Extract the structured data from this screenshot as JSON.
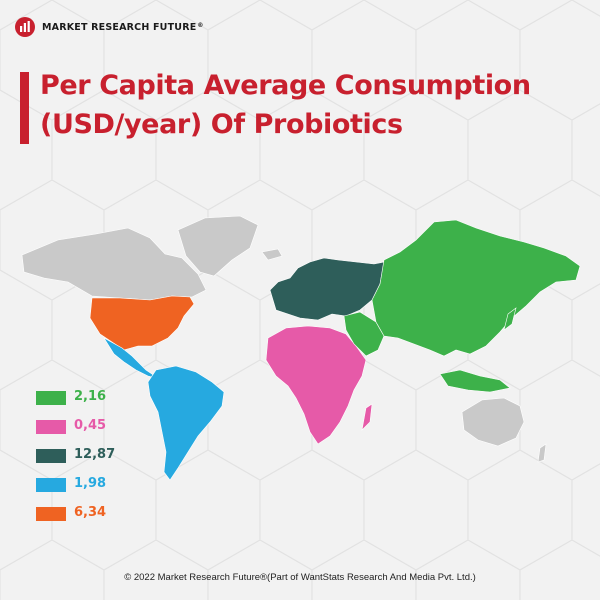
{
  "brand": {
    "name": "MARKET RESEARCH FUTURE",
    "mark": "®"
  },
  "title": {
    "line1": "Per Capita Average Consumption",
    "line2": "(USD/year) Of Probiotics"
  },
  "colors": {
    "title": "#c8202e",
    "asia_pacific": "#3db14a",
    "middle_east_africa": "#e65aa8",
    "europe": "#2e5e5a",
    "south_america": "#26a9e0",
    "north_america": "#ef6322",
    "not_covered": "#c9c9c9"
  },
  "chart_data": {
    "type": "choropleth-map",
    "legend": [
      {
        "value": "2,16",
        "color": "#3db14a"
      },
      {
        "value": "0,45",
        "color": "#e65aa8"
      },
      {
        "value": "12,87",
        "color": "#2e5e5a"
      },
      {
        "value": "1,98",
        "color": "#26a9e0"
      },
      {
        "value": "6,34",
        "color": "#ef6322"
      }
    ]
  },
  "footer": {
    "text": "© 2022 Market Research Future®(Part of WantStats Research And Media Pvt. Ltd.)"
  }
}
